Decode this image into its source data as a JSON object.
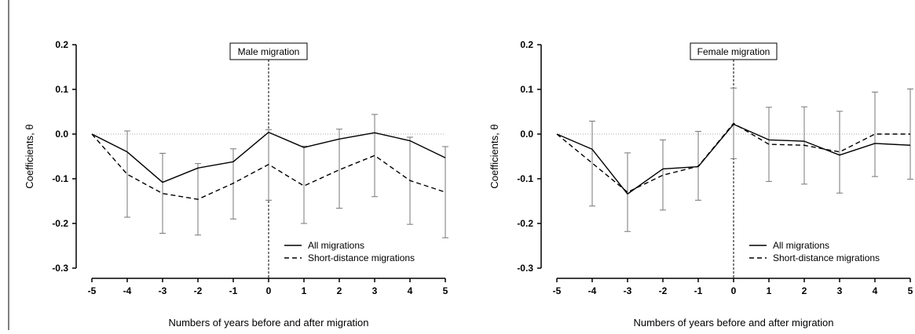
{
  "chart_data": [
    {
      "type": "line",
      "annotation": "Male migration",
      "xlabel": "Numbers of years before and after migration",
      "ylabel": "Coefficients, θ",
      "x": [
        -5,
        -4,
        -3,
        -2,
        -1,
        0,
        1,
        2,
        3,
        4,
        5
      ],
      "xlim": [
        -5,
        5
      ],
      "ylim": [
        -0.3,
        0.2
      ],
      "yticks": [
        -0.3,
        -0.2,
        -0.1,
        0.0,
        0.1,
        0.2
      ],
      "ytick_labels": [
        "-0.3",
        "-0.2",
        "-0.1",
        "0.0",
        "0.1",
        "0.2"
      ],
      "xtick_labels": [
        "-5",
        "-4",
        "-3",
        "-2",
        "-1",
        "0",
        "1",
        "2",
        "3",
        "4",
        "5"
      ],
      "reference_line_y": 0,
      "event_line_x": 0,
      "legend_position": "bottom-right",
      "series": [
        {
          "name": "All migrations",
          "style": "solid",
          "values": [
            0.0,
            -0.04,
            -0.108,
            -0.076,
            -0.062,
            0.004,
            -0.03,
            -0.011,
            0.003,
            -0.015,
            -0.053
          ],
          "ci_low": [
            null,
            -0.186,
            -0.222,
            -0.226,
            -0.19,
            -0.148,
            -0.2,
            -0.166,
            -0.14,
            -0.202,
            -0.232
          ],
          "ci_high": [
            null,
            0.007,
            -0.043,
            -0.066,
            -0.033,
            0.01,
            -0.027,
            0.011,
            0.044,
            -0.007,
            -0.028
          ]
        },
        {
          "name": "Short-distance migrations",
          "style": "dashed",
          "values": [
            0.0,
            -0.09,
            -0.133,
            -0.146,
            -0.11,
            -0.068,
            -0.116,
            -0.08,
            -0.048,
            -0.104,
            -0.13
          ]
        }
      ]
    },
    {
      "type": "line",
      "annotation": "Female migration",
      "xlabel": "Numbers of years before and after migration",
      "ylabel": "Coefficients, θ",
      "x": [
        -5,
        -4,
        -3,
        -2,
        -1,
        0,
        1,
        2,
        3,
        4,
        5
      ],
      "xlim": [
        -5,
        5
      ],
      "ylim": [
        -0.3,
        0.2
      ],
      "yticks": [
        -0.3,
        -0.2,
        -0.1,
        0.0,
        0.1,
        0.2
      ],
      "ytick_labels": [
        "-0.3",
        "-0.2",
        "-0.1",
        "0.0",
        "0.1",
        "0.2"
      ],
      "xtick_labels": [
        "-5",
        "-4",
        "-3",
        "-2",
        "-1",
        "0",
        "1",
        "2",
        "3",
        "4",
        "5"
      ],
      "reference_line_y": 0,
      "event_line_x": 0,
      "legend_position": "bottom-right",
      "series": [
        {
          "name": "All migrations",
          "style": "solid",
          "values": [
            0.0,
            -0.034,
            -0.134,
            -0.078,
            -0.073,
            0.022,
            -0.013,
            -0.016,
            -0.047,
            -0.021,
            -0.025
          ],
          "ci_low": [
            null,
            -0.161,
            -0.218,
            -0.17,
            -0.148,
            -0.055,
            -0.106,
            -0.112,
            -0.132,
            -0.095,
            -0.101
          ],
          "ci_high": [
            null,
            0.029,
            -0.042,
            -0.013,
            0.006,
            0.103,
            0.06,
            0.061,
            0.051,
            0.094,
            0.101
          ]
        },
        {
          "name": "Short-distance migrations",
          "style": "dashed",
          "values": [
            0.0,
            -0.065,
            -0.13,
            -0.092,
            -0.072,
            0.024,
            -0.023,
            -0.025,
            -0.04,
            0.0,
            0.0
          ]
        }
      ]
    }
  ]
}
